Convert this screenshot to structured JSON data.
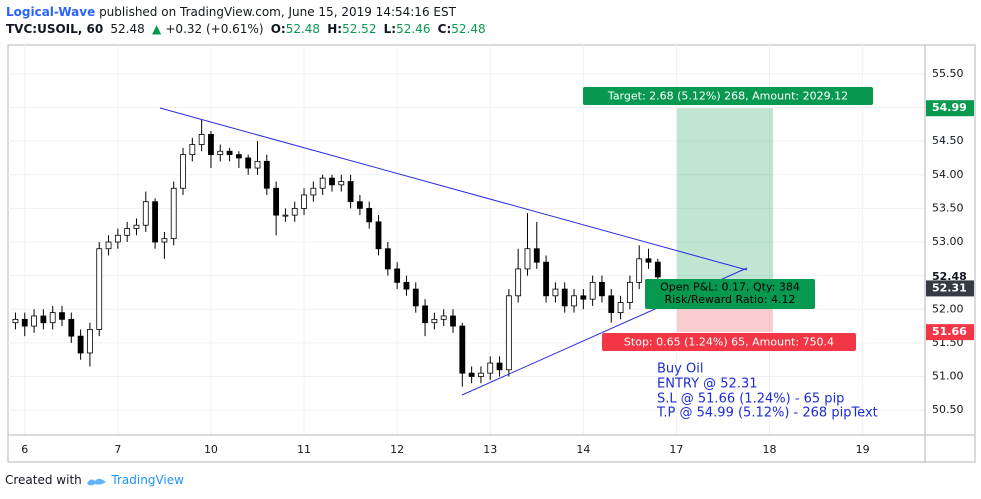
{
  "header": {
    "author": "Logical-Wave",
    "published": "published on TradingView.com, June 15, 2019 14:54:16 EST"
  },
  "legend": {
    "symbol": "TVC:USOIL, 60",
    "last": "52.48",
    "arrow": "▲",
    "change": "+0.32 (+0.61%)",
    "o_label": "O:",
    "o": "52.48",
    "h_label": "H:",
    "h": "52.52",
    "l_label": "L:",
    "l": "52.46",
    "c_label": "C:",
    "c": "52.48"
  },
  "position": {
    "target": "Target: 2.68 (5.12%) 268, Amount: 2029.12",
    "pnl": "Open P&L: 0.17, Qty: 384",
    "ratio": "Risk/Reward Ratio: 4.12",
    "stop": "Stop: 0.65 (1.24%) 65, Amount: 750.4"
  },
  "note": [
    "Buy Oil",
    "ENTRY @ 52.31",
    "S.L @ 51.66 (1.24%) - 65 pip",
    "T.P @ 54.99 (5.12%) - 268 pipText"
  ],
  "footer": {
    "text": "Created with",
    "brand": "TradingView"
  },
  "chart_data": {
    "type": "candlestick",
    "up_color": "#ffffff",
    "down_color": "#000000",
    "grid": true,
    "xlim": [
      -0.18,
      9.67
    ],
    "ylim": [
      50.13,
      55.93
    ],
    "xticks": [
      {
        "value": 0,
        "label": "6"
      },
      {
        "value": 1,
        "label": "7"
      },
      {
        "value": 2,
        "label": "10"
      },
      {
        "value": 3,
        "label": "11"
      },
      {
        "value": 4,
        "label": "12"
      },
      {
        "value": 5,
        "label": "13"
      },
      {
        "value": 6,
        "label": "14"
      },
      {
        "value": 7,
        "label": "17"
      },
      {
        "value": 8,
        "label": "18"
      },
      {
        "value": 9,
        "label": "19"
      }
    ],
    "yticks": [
      {
        "value": 50.5,
        "label": "50.50"
      },
      {
        "value": 51,
        "label": "51.00"
      },
      {
        "value": 51.5,
        "label": "51.50"
      },
      {
        "value": 52,
        "label": "52.00"
      },
      {
        "value": 52.5,
        "label": "52.50"
      },
      {
        "value": 53,
        "label": "53.00"
      },
      {
        "value": 53.5,
        "label": "53.50"
      },
      {
        "value": 54,
        "label": "54.00"
      },
      {
        "value": 54.5,
        "label": "54.50"
      },
      {
        "value": 55,
        "label": "55.00"
      },
      {
        "value": 55.5,
        "label": "55.50"
      }
    ],
    "price_labels": [
      {
        "value": 54.99,
        "color": "#089950"
      },
      {
        "value": 52.48,
        "color": "#ffffff"
      },
      {
        "value": 52.31,
        "color": "#363a45"
      },
      {
        "value": 51.66,
        "color": "#f23645"
      }
    ],
    "x": [
      -0.1,
      0,
      0.1,
      0.2,
      0.3,
      0.4,
      0.5,
      0.6,
      0.7,
      0.8,
      0.9,
      1,
      1.1,
      1.2,
      1.3,
      1.4,
      1.5,
      1.6,
      1.7,
      1.8,
      1.9,
      2,
      2.1,
      2.2,
      2.3,
      2.4,
      2.5,
      2.6,
      2.7,
      2.8,
      2.9,
      3,
      3.1,
      3.2,
      3.3,
      3.4,
      3.5,
      3.6,
      3.7,
      3.8,
      3.9,
      4,
      4.1,
      4.2,
      4.3,
      4.4,
      4.5,
      4.6,
      4.7,
      4.8,
      4.9,
      5,
      5.1,
      5.2,
      5.3,
      5.4,
      5.5,
      5.6,
      5.7,
      5.8,
      5.9,
      6,
      6.1,
      6.2,
      6.3,
      6.4,
      6.5,
      6.6,
      6.7,
      6.8
    ],
    "open": [
      51.8,
      51.85,
      51.75,
      51.9,
      51.8,
      51.95,
      51.85,
      51.6,
      51.35,
      51.7,
      52.9,
      53.0,
      53.1,
      53.2,
      53.25,
      53.6,
      53.0,
      53.05,
      53.8,
      54.3,
      54.45,
      54.6,
      54.3,
      54.35,
      54.3,
      54.25,
      54.1,
      54.2,
      53.8,
      53.4,
      53.4,
      53.5,
      53.7,
      53.8,
      53.95,
      53.85,
      53.9,
      53.6,
      53.5,
      53.3,
      52.9,
      52.6,
      52.4,
      52.3,
      52.05,
      51.8,
      51.85,
      51.9,
      51.75,
      51.05,
      51.0,
      51.05,
      51.2,
      51.1,
      52.2,
      52.6,
      52.9,
      52.7,
      52.2,
      52.3,
      52.05,
      52.2,
      52.15,
      52.4,
      52.2,
      51.95,
      52.1,
      52.4,
      52.75,
      52.7
    ],
    "high": [
      51.95,
      51.95,
      52.0,
      52.0,
      52.05,
      52.05,
      51.95,
      51.7,
      51.8,
      53.0,
      53.1,
      53.2,
      53.3,
      53.35,
      53.75,
      53.65,
      53.15,
      53.9,
      54.4,
      54.55,
      54.82,
      54.65,
      54.45,
      54.4,
      54.35,
      54.3,
      54.5,
      54.3,
      53.9,
      53.5,
      53.6,
      53.8,
      53.9,
      54.0,
      54.0,
      54.0,
      54.0,
      53.7,
      53.6,
      53.4,
      53.0,
      52.7,
      52.5,
      52.4,
      52.15,
      51.95,
      52.0,
      52.0,
      51.8,
      51.15,
      51.15,
      51.3,
      51.3,
      52.3,
      52.9,
      53.43,
      53.3,
      52.8,
      52.4,
      52.4,
      52.3,
      52.3,
      52.5,
      52.5,
      52.3,
      52.2,
      52.5,
      52.95,
      52.9,
      52.75
    ],
    "low": [
      51.7,
      51.6,
      51.65,
      51.7,
      51.7,
      51.75,
      51.5,
      51.25,
      51.15,
      51.6,
      52.8,
      52.9,
      53.0,
      53.1,
      53.15,
      52.9,
      52.75,
      52.95,
      53.7,
      54.2,
      54.35,
      54.1,
      54.2,
      54.2,
      54.1,
      54.0,
      54.0,
      53.7,
      53.1,
      53.3,
      53.3,
      53.4,
      53.6,
      53.7,
      53.75,
      53.75,
      53.5,
      53.4,
      53.2,
      52.8,
      52.5,
      52.3,
      52.2,
      51.95,
      51.6,
      51.7,
      51.75,
      51.65,
      50.85,
      50.9,
      50.9,
      50.95,
      51.0,
      51.0,
      52.1,
      52.5,
      52.6,
      52.1,
      52.1,
      51.95,
      51.95,
      52.0,
      52.05,
      52.1,
      51.8,
      51.85,
      52.0,
      52.3,
      52.6,
      52.4
    ],
    "close": [
      51.85,
      51.75,
      51.9,
      51.8,
      51.95,
      51.85,
      51.6,
      51.35,
      51.7,
      52.9,
      53.0,
      53.1,
      53.2,
      53.25,
      53.6,
      53.0,
      53.05,
      53.8,
      54.3,
      54.45,
      54.6,
      54.3,
      54.35,
      54.3,
      54.25,
      54.1,
      54.2,
      53.8,
      53.4,
      53.4,
      53.5,
      53.7,
      53.8,
      53.95,
      53.85,
      53.9,
      53.6,
      53.5,
      53.3,
      52.9,
      52.6,
      52.4,
      52.3,
      52.05,
      51.8,
      51.85,
      51.9,
      51.75,
      51.05,
      51.0,
      51.05,
      51.2,
      51.1,
      52.2,
      52.6,
      52.9,
      52.7,
      52.2,
      52.3,
      52.05,
      52.2,
      52.15,
      52.4,
      52.2,
      51.95,
      52.1,
      52.4,
      52.75,
      52.7,
      52.48
    ]
  }
}
